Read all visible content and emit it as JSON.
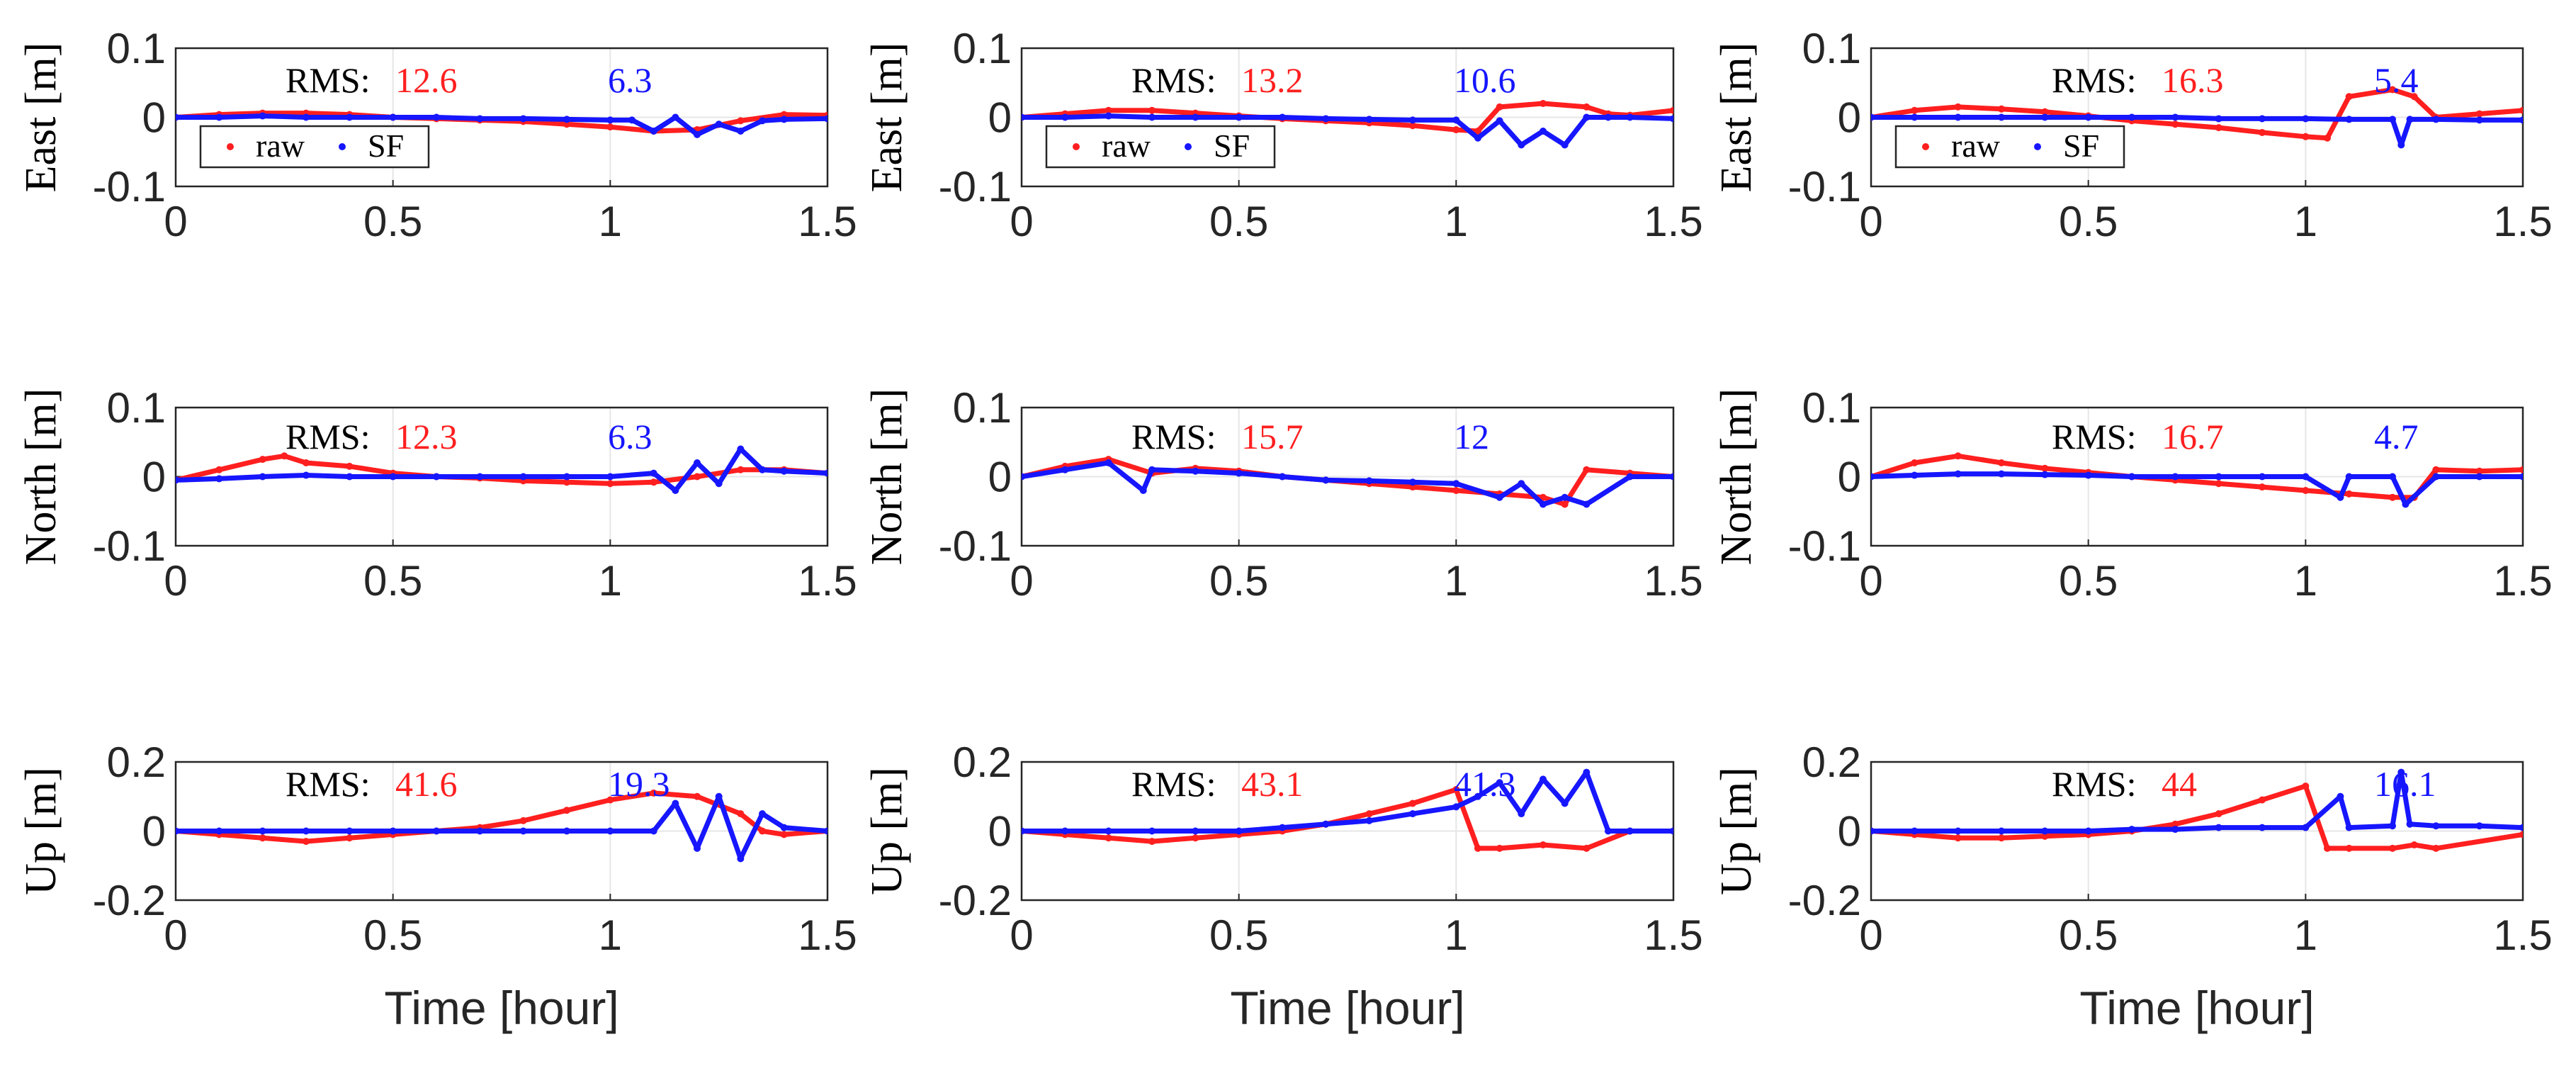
{
  "colors": {
    "raw": "#ff1f1f",
    "sf": "#1616ff",
    "axis": "#262626",
    "grid": "#e6e6e6",
    "text": "#000000"
  },
  "shared": {
    "xlabel": "Time [hour]",
    "rms_label": "RMS:",
    "legend": {
      "raw": "raw",
      "sf": "SF"
    },
    "xlim": [
      0,
      1.5
    ],
    "xticks": [
      0,
      0.5,
      1,
      1.5
    ],
    "xtick_labels": [
      "0",
      "0.5",
      "1",
      "1.5"
    ]
  },
  "chart_data": [
    {
      "type": "scatter",
      "id": "c1-east",
      "column": 1,
      "ylabel": "East [m]",
      "ylim": [
        -0.1,
        0.1
      ],
      "yticks": [
        -0.1,
        0,
        0.1
      ],
      "ytick_labels": [
        "-0.1",
        "0",
        "0.1"
      ],
      "rms_raw": "12.6",
      "rms_sf": "6.3",
      "show_legend": true,
      "show_xlabel": false,
      "series": [
        {
          "name": "raw",
          "x": [
            0,
            0.1,
            0.2,
            0.3,
            0.4,
            0.5,
            0.6,
            0.7,
            0.8,
            0.9,
            1.0,
            1.1,
            1.2,
            1.3,
            1.4,
            1.5
          ],
          "y": [
            0.0,
            0.004,
            0.006,
            0.006,
            0.004,
            0.0,
            -0.002,
            -0.004,
            -0.006,
            -0.01,
            -0.014,
            -0.02,
            -0.018,
            -0.005,
            0.004,
            0.003
          ]
        },
        {
          "name": "SF",
          "x": [
            0,
            0.1,
            0.2,
            0.3,
            0.4,
            0.5,
            0.6,
            0.7,
            0.8,
            0.9,
            1.0,
            1.05,
            1.1,
            1.15,
            1.2,
            1.25,
            1.3,
            1.35,
            1.4,
            1.5
          ],
          "y": [
            0.0,
            0.0,
            0.002,
            0.0,
            0.0,
            0.0,
            0.0,
            -0.002,
            -0.002,
            -0.003,
            -0.004,
            -0.004,
            -0.02,
            0.0,
            -0.025,
            -0.01,
            -0.02,
            -0.005,
            -0.003,
            -0.002
          ]
        }
      ]
    },
    {
      "type": "scatter",
      "id": "c1-north",
      "column": 1,
      "ylabel": "North [m]",
      "ylim": [
        -0.1,
        0.1
      ],
      "yticks": [
        -0.1,
        0,
        0.1
      ],
      "ytick_labels": [
        "-0.1",
        "0",
        "0.1"
      ],
      "rms_raw": "12.3",
      "rms_sf": "6.3",
      "show_legend": false,
      "show_xlabel": false,
      "series": [
        {
          "name": "raw",
          "x": [
            0,
            0.1,
            0.2,
            0.25,
            0.3,
            0.4,
            0.5,
            0.6,
            0.7,
            0.8,
            0.9,
            1.0,
            1.1,
            1.2,
            1.3,
            1.4,
            1.5
          ],
          "y": [
            -0.005,
            0.01,
            0.025,
            0.03,
            0.02,
            0.015,
            0.005,
            0.0,
            -0.002,
            -0.006,
            -0.008,
            -0.01,
            -0.008,
            0.0,
            0.01,
            0.01,
            0.005
          ]
        },
        {
          "name": "SF",
          "x": [
            0,
            0.1,
            0.2,
            0.3,
            0.4,
            0.5,
            0.6,
            0.7,
            0.8,
            0.9,
            1.0,
            1.1,
            1.15,
            1.2,
            1.25,
            1.3,
            1.35,
            1.4,
            1.5
          ],
          "y": [
            -0.005,
            -0.003,
            0.0,
            0.002,
            0.0,
            0.0,
            0.0,
            0.0,
            0.0,
            0.0,
            0.0,
            0.005,
            -0.02,
            0.02,
            -0.01,
            0.04,
            0.01,
            0.008,
            0.005
          ]
        }
      ]
    },
    {
      "type": "scatter",
      "id": "c1-up",
      "column": 1,
      "ylabel": "Up [m]",
      "ylim": [
        -0.2,
        0.2
      ],
      "yticks": [
        -0.2,
        0,
        0.2
      ],
      "ytick_labels": [
        "-0.2",
        "0",
        "0.2"
      ],
      "rms_raw": "41.6",
      "rms_sf": "19.3",
      "show_legend": false,
      "show_xlabel": true,
      "series": [
        {
          "name": "raw",
          "x": [
            0,
            0.1,
            0.2,
            0.3,
            0.4,
            0.5,
            0.6,
            0.7,
            0.8,
            0.9,
            1.0,
            1.1,
            1.2,
            1.3,
            1.35,
            1.4,
            1.5
          ],
          "y": [
            0.0,
            -0.01,
            -0.02,
            -0.03,
            -0.02,
            -0.01,
            0.0,
            0.01,
            0.03,
            0.06,
            0.09,
            0.11,
            0.1,
            0.05,
            0.0,
            -0.01,
            0.0
          ]
        },
        {
          "name": "SF",
          "x": [
            0,
            0.1,
            0.2,
            0.3,
            0.4,
            0.5,
            0.6,
            0.7,
            0.8,
            0.9,
            1.0,
            1.1,
            1.15,
            1.2,
            1.25,
            1.3,
            1.35,
            1.4,
            1.5
          ],
          "y": [
            0.0,
            0.0,
            0.0,
            0.0,
            0.0,
            0.0,
            0.0,
            0.0,
            0.0,
            0.0,
            0.0,
            0.0,
            0.08,
            -0.05,
            0.1,
            -0.08,
            0.05,
            0.01,
            0.0
          ]
        }
      ]
    },
    {
      "type": "scatter",
      "id": "c2-east",
      "column": 2,
      "ylabel": "East [m]",
      "ylim": [
        -0.1,
        0.1
      ],
      "yticks": [
        -0.1,
        0,
        0.1
      ],
      "ytick_labels": [
        "-0.1",
        "0",
        "0.1"
      ],
      "rms_raw": "13.2",
      "rms_sf": "10.6",
      "show_legend": true,
      "show_xlabel": false,
      "series": [
        {
          "name": "raw",
          "x": [
            0,
            0.1,
            0.2,
            0.3,
            0.4,
            0.5,
            0.6,
            0.7,
            0.8,
            0.9,
            1.0,
            1.05,
            1.1,
            1.2,
            1.3,
            1.35,
            1.4,
            1.5
          ],
          "y": [
            0.0,
            0.005,
            0.01,
            0.01,
            0.006,
            0.002,
            -0.002,
            -0.005,
            -0.008,
            -0.012,
            -0.018,
            -0.02,
            0.015,
            0.02,
            0.015,
            0.005,
            0.003,
            0.01
          ]
        },
        {
          "name": "SF",
          "x": [
            0,
            0.1,
            0.2,
            0.3,
            0.4,
            0.5,
            0.6,
            0.7,
            0.8,
            0.9,
            1.0,
            1.05,
            1.1,
            1.15,
            1.2,
            1.25,
            1.3,
            1.35,
            1.4,
            1.5
          ],
          "y": [
            0.0,
            0.0,
            0.002,
            0.0,
            0.0,
            0.0,
            0.0,
            -0.002,
            -0.003,
            -0.004,
            -0.004,
            -0.03,
            -0.005,
            -0.04,
            -0.02,
            -0.04,
            0.0,
            0.0,
            0.0,
            -0.002
          ]
        }
      ]
    },
    {
      "type": "scatter",
      "id": "c2-north",
      "column": 2,
      "ylabel": "North [m]",
      "ylim": [
        -0.1,
        0.1
      ],
      "yticks": [
        -0.1,
        0,
        0.1
      ],
      "ytick_labels": [
        "-0.1",
        "0",
        "0.1"
      ],
      "rms_raw": "15.7",
      "rms_sf": "12",
      "show_legend": false,
      "show_xlabel": false,
      "series": [
        {
          "name": "raw",
          "x": [
            0,
            0.1,
            0.2,
            0.3,
            0.4,
            0.5,
            0.6,
            0.7,
            0.8,
            0.9,
            1.0,
            1.1,
            1.2,
            1.25,
            1.3,
            1.4,
            1.5
          ],
          "y": [
            0.0,
            0.015,
            0.025,
            0.005,
            0.012,
            0.008,
            0.0,
            -0.005,
            -0.01,
            -0.015,
            -0.02,
            -0.025,
            -0.03,
            -0.04,
            0.01,
            0.005,
            0.0
          ]
        },
        {
          "name": "SF",
          "x": [
            0,
            0.1,
            0.2,
            0.28,
            0.3,
            0.4,
            0.5,
            0.6,
            0.7,
            0.8,
            0.9,
            1.0,
            1.1,
            1.15,
            1.2,
            1.25,
            1.3,
            1.4,
            1.5
          ],
          "y": [
            0.0,
            0.01,
            0.02,
            -0.02,
            0.01,
            0.008,
            0.005,
            0.0,
            -0.005,
            -0.006,
            -0.008,
            -0.01,
            -0.03,
            -0.01,
            -0.04,
            -0.03,
            -0.04,
            0.0,
            0.0
          ]
        }
      ]
    },
    {
      "type": "scatter",
      "id": "c2-up",
      "column": 2,
      "ylabel": "Up [m]",
      "ylim": [
        -0.2,
        0.2
      ],
      "yticks": [
        -0.2,
        0,
        0.2
      ],
      "ytick_labels": [
        "-0.2",
        "0",
        "0.2"
      ],
      "rms_raw": "43.1",
      "rms_sf": "41.3",
      "show_legend": false,
      "show_xlabel": true,
      "series": [
        {
          "name": "raw",
          "x": [
            0,
            0.1,
            0.2,
            0.3,
            0.4,
            0.5,
            0.6,
            0.7,
            0.8,
            0.9,
            1.0,
            1.05,
            1.1,
            1.2,
            1.3,
            1.4,
            1.5
          ],
          "y": [
            0.0,
            -0.01,
            -0.02,
            -0.03,
            -0.02,
            -0.01,
            0.0,
            0.02,
            0.05,
            0.08,
            0.12,
            -0.05,
            -0.05,
            -0.04,
            -0.05,
            0.0,
            0.0
          ]
        },
        {
          "name": "SF",
          "x": [
            0,
            0.1,
            0.2,
            0.3,
            0.4,
            0.5,
            0.6,
            0.7,
            0.8,
            0.9,
            1.0,
            1.05,
            1.1,
            1.15,
            1.2,
            1.25,
            1.3,
            1.35,
            1.4,
            1.5
          ],
          "y": [
            0.0,
            0.0,
            0.0,
            0.0,
            0.0,
            0.0,
            0.01,
            0.02,
            0.03,
            0.05,
            0.07,
            0.1,
            0.14,
            0.05,
            0.15,
            0.08,
            0.17,
            0.0,
            0.0,
            0.0
          ]
        }
      ]
    },
    {
      "type": "scatter",
      "id": "c3-east",
      "column": 3,
      "ylabel": "East [m]",
      "ylim": [
        -0.1,
        0.1
      ],
      "yticks": [
        -0.1,
        0,
        0.1
      ],
      "ytick_labels": [
        "-0.1",
        "0",
        "0.1"
      ],
      "rms_raw": "16.3",
      "rms_sf": "5.4",
      "show_legend": true,
      "show_xlabel": false,
      "series": [
        {
          "name": "raw",
          "x": [
            0,
            0.1,
            0.2,
            0.3,
            0.4,
            0.5,
            0.6,
            0.7,
            0.8,
            0.9,
            1.0,
            1.05,
            1.1,
            1.2,
            1.25,
            1.3,
            1.4,
            1.5
          ],
          "y": [
            0.0,
            0.01,
            0.015,
            0.012,
            0.008,
            0.002,
            -0.005,
            -0.01,
            -0.015,
            -0.022,
            -0.028,
            -0.03,
            0.03,
            0.04,
            0.03,
            0.0,
            0.005,
            0.01
          ]
        },
        {
          "name": "SF",
          "x": [
            0,
            0.1,
            0.2,
            0.3,
            0.4,
            0.5,
            0.6,
            0.7,
            0.8,
            0.9,
            1.0,
            1.1,
            1.2,
            1.22,
            1.24,
            1.3,
            1.4,
            1.5
          ],
          "y": [
            0.0,
            0.0,
            0.0,
            0.0,
            0.0,
            0.0,
            0.0,
            0.0,
            -0.002,
            -0.002,
            -0.002,
            -0.003,
            -0.003,
            -0.04,
            -0.003,
            -0.003,
            -0.004,
            -0.004
          ]
        }
      ]
    },
    {
      "type": "scatter",
      "id": "c3-north",
      "column": 3,
      "ylabel": "North [m]",
      "ylim": [
        -0.1,
        0.1
      ],
      "yticks": [
        -0.1,
        0,
        0.1
      ],
      "ytick_labels": [
        "-0.1",
        "0",
        "0.1"
      ],
      "rms_raw": "16.7",
      "rms_sf": "4.7",
      "show_legend": false,
      "show_xlabel": false,
      "series": [
        {
          "name": "raw",
          "x": [
            0,
            0.1,
            0.2,
            0.3,
            0.4,
            0.5,
            0.6,
            0.7,
            0.8,
            0.9,
            1.0,
            1.1,
            1.2,
            1.25,
            1.3,
            1.4,
            1.5
          ],
          "y": [
            0.0,
            0.02,
            0.03,
            0.02,
            0.012,
            0.006,
            0.0,
            -0.005,
            -0.01,
            -0.015,
            -0.02,
            -0.025,
            -0.03,
            -0.03,
            0.01,
            0.008,
            0.01
          ]
        },
        {
          "name": "SF",
          "x": [
            0,
            0.1,
            0.2,
            0.3,
            0.4,
            0.5,
            0.6,
            0.7,
            0.8,
            0.9,
            1.0,
            1.08,
            1.1,
            1.2,
            1.23,
            1.3,
            1.4,
            1.5
          ],
          "y": [
            0.0,
            0.002,
            0.004,
            0.004,
            0.003,
            0.002,
            0.0,
            0.0,
            0.0,
            0.0,
            0.0,
            -0.03,
            0.0,
            0.0,
            -0.04,
            0.0,
            0.0,
            0.0
          ]
        }
      ]
    },
    {
      "type": "scatter",
      "id": "c3-up",
      "column": 3,
      "ylabel": "Up [m]",
      "ylim": [
        -0.2,
        0.2
      ],
      "yticks": [
        -0.2,
        0,
        0.2
      ],
      "ytick_labels": [
        "-0.2",
        "0",
        "0.2"
      ],
      "rms_raw": "44",
      "rms_sf": "16.1",
      "show_legend": false,
      "show_xlabel": true,
      "series": [
        {
          "name": "raw",
          "x": [
            0,
            0.1,
            0.2,
            0.3,
            0.4,
            0.5,
            0.6,
            0.7,
            0.8,
            0.9,
            1.0,
            1.05,
            1.1,
            1.2,
            1.25,
            1.3,
            1.5
          ],
          "y": [
            0.0,
            -0.01,
            -0.02,
            -0.02,
            -0.015,
            -0.01,
            0.0,
            0.02,
            0.05,
            0.09,
            0.13,
            -0.05,
            -0.05,
            -0.05,
            -0.04,
            -0.05,
            -0.01
          ]
        },
        {
          "name": "SF",
          "x": [
            0,
            0.1,
            0.2,
            0.3,
            0.4,
            0.5,
            0.6,
            0.7,
            0.8,
            0.9,
            1.0,
            1.08,
            1.1,
            1.2,
            1.22,
            1.24,
            1.3,
            1.4,
            1.5
          ],
          "y": [
            0.0,
            0.0,
            0.0,
            0.0,
            0.0,
            0.0,
            0.005,
            0.005,
            0.01,
            0.01,
            0.01,
            0.1,
            0.01,
            0.015,
            0.17,
            0.02,
            0.015,
            0.015,
            0.01
          ]
        }
      ]
    }
  ]
}
